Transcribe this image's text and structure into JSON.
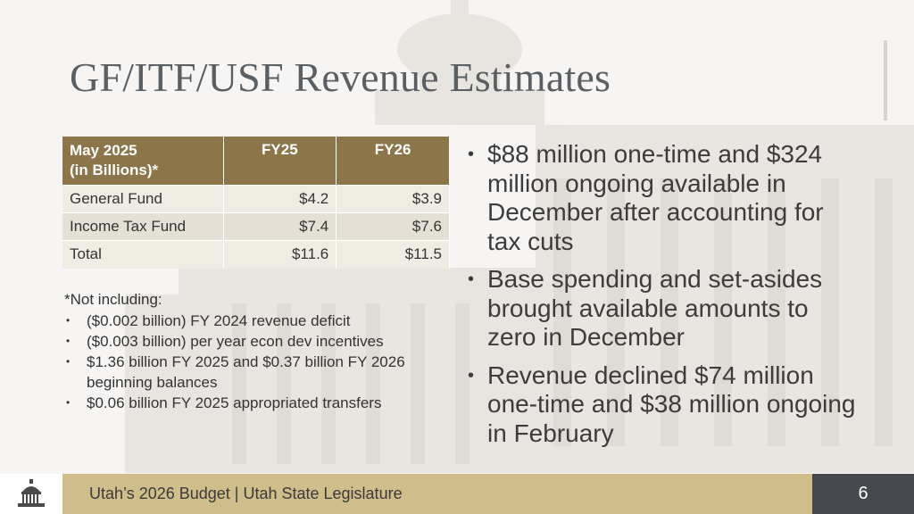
{
  "slide": {
    "title": "GF/ITF/USF Revenue Estimates",
    "page_number": "6"
  },
  "table": {
    "header": [
      "May 2025",
      "(in Billions)*",
      "FY25",
      "FY26"
    ],
    "rows": [
      {
        "label": "General Fund",
        "fy25": "$4.2",
        "fy26": "$3.9"
      },
      {
        "label": "Income Tax Fund",
        "fy25": "$7.4",
        "fy26": "$7.6"
      },
      {
        "label": "Total",
        "fy25": "$11.6",
        "fy26": "$11.5"
      }
    ]
  },
  "note": {
    "intro": "*Not including:",
    "items": [
      "($0.002 billion) FY 2024 revenue deficit",
      "($0.003 billion) per year econ dev incentives",
      "$1.36 billion FY 2025 and $0.37 billion FY 2026 beginning balances",
      "$0.06 billion FY 2025 appropriated transfers"
    ]
  },
  "bullets": [
    "$88 million one-time and $324 million ongoing available in December after accounting for tax cuts",
    "Base spending and set-asides brought available amounts to zero in December",
    "Revenue declined $74 million one-time and $38 million ongoing in February"
  ],
  "footer": {
    "text": "Utah’s 2026 Budget | Utah State Legislature"
  },
  "colors": {
    "table_header": "#8c7549",
    "footer_gold": "#d0bd8c",
    "footer_page": "#45494d",
    "title": "#5a5f63"
  },
  "icons": {
    "logo": "capitol-dome-logo-icon"
  }
}
